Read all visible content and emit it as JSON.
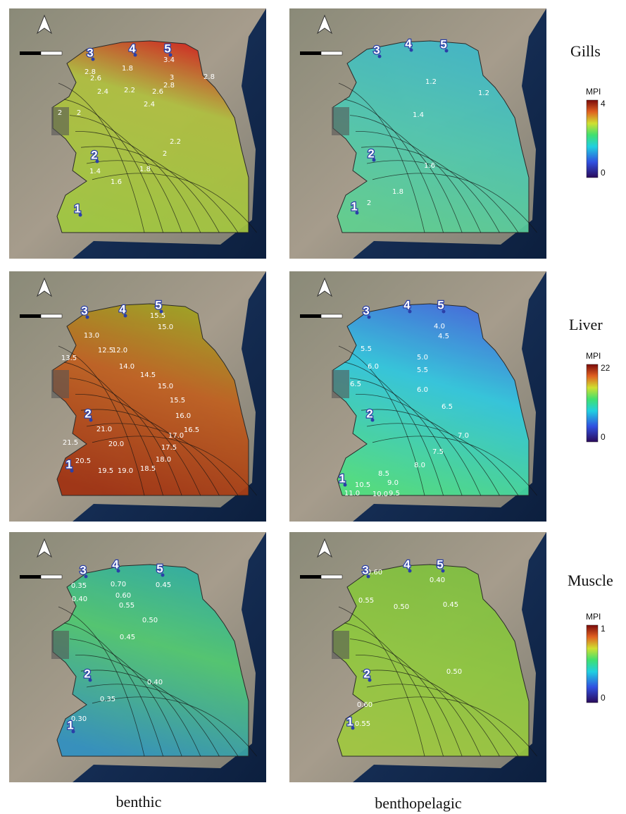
{
  "columns": [
    "benthic",
    "benthopelagic"
  ],
  "rows": [
    {
      "label": "Gills",
      "legend": {
        "title": "MPI",
        "max": "4",
        "min": "0"
      },
      "panels": [
        {
          "stations": [
            "1",
            "2",
            "3",
            "4",
            "5"
          ],
          "contours": [
            "1.8",
            "2.2",
            "2.6",
            "2.8",
            "2.4",
            "3.4",
            "3",
            "2.8",
            "2.6",
            "2.4",
            "2.8",
            "2",
            "2",
            "2.2",
            "2",
            "1.8",
            "1.6",
            "1.4"
          ]
        },
        {
          "stations": [
            "1",
            "2",
            "3",
            "4",
            "5"
          ],
          "contours": [
            "1.2",
            "1.2",
            "1.4",
            "1.6",
            "1.8",
            "2"
          ]
        }
      ]
    },
    {
      "label": "Liver",
      "legend": {
        "title": "MPI",
        "max": "22",
        "min": "0"
      },
      "panels": [
        {
          "stations": [
            "1",
            "2",
            "3",
            "4",
            "5"
          ],
          "contours": [
            "13.0",
            "13.5",
            "12.5",
            "12.0",
            "14.0",
            "14.5",
            "15.0",
            "15.5",
            "16.0",
            "16.5",
            "17.0",
            "17.5",
            "18.0",
            "18.5",
            "19.0",
            "19.5",
            "20.0",
            "20.5",
            "21.0",
            "21.5",
            "15.5",
            "15.0"
          ]
        },
        {
          "stations": [
            "1",
            "2",
            "3",
            "4",
            "5"
          ],
          "contours": [
            "4.0",
            "4.5",
            "5.0",
            "5.5",
            "5.5",
            "6.0",
            "6.0",
            "6.5",
            "6.5",
            "7.0",
            "7.5",
            "8.0",
            "8.5",
            "9.0",
            "9.5",
            "10.0",
            "10.5",
            "11.0"
          ]
        }
      ]
    },
    {
      "label": "Muscle",
      "legend": {
        "title": "MPI",
        "max": "1",
        "min": "0"
      },
      "panels": [
        {
          "stations": [
            "1",
            "2",
            "3",
            "4",
            "5"
          ],
          "contours": [
            "0.35",
            "0.40",
            "0.70",
            "0.60",
            "0.55",
            "0.50",
            "0.45",
            "0.45",
            "0.40",
            "0.35",
            "0.30"
          ]
        },
        {
          "stations": [
            "1",
            "2",
            "3",
            "4",
            "5"
          ],
          "contours": [
            "0.60",
            "0.55",
            "0.50",
            "0.40",
            "0.45",
            "0.50",
            "0.55",
            "0.60"
          ]
        }
      ]
    }
  ]
}
